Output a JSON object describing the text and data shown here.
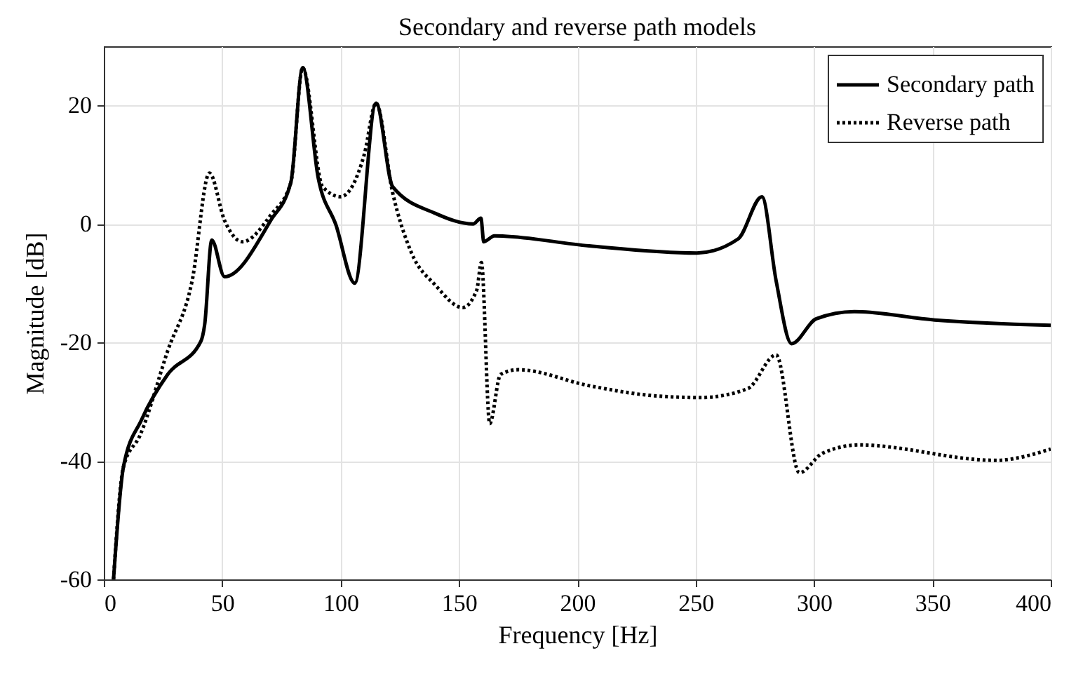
{
  "chart_data": {
    "type": "line",
    "title": "Secondary and reverse path models",
    "xlabel": "Frequency [Hz]",
    "ylabel": "Magnitude [dB]",
    "xlim": [
      0,
      400
    ],
    "xticks": [
      0,
      50,
      100,
      150,
      200,
      250,
      300,
      350,
      400
    ],
    "ylim": [
      -60,
      30
    ],
    "yticks": [
      -60,
      -40,
      -20,
      0,
      20
    ],
    "grid": true,
    "legend": "top right",
    "series": [
      {
        "name": "Secondary path",
        "color": "#000000",
        "line_style": "solid",
        "x": [
          4.1,
          8.3,
          16,
          27,
          41,
          42.6,
          45.6,
          51,
          70.5,
          79,
          84,
          90.6,
          98,
          106,
          115,
          122,
          140,
          156,
          159.3,
          160.5,
          165,
          205,
          250.5,
          268,
          278,
          284,
          290.5,
          301,
          317,
          351,
          400
        ],
        "values": [
          -60,
          -41,
          -33,
          -25.4,
          -19.8,
          -17,
          -2.7,
          -8.9,
          0.6,
          7,
          26.4,
          7.7,
          -0.1,
          -10,
          20.4,
          6.3,
          1.8,
          0,
          1,
          -3,
          -2,
          -3.7,
          -4.9,
          -2.5,
          4.6,
          -9.6,
          -20.2,
          -16,
          -14.8,
          -16.2,
          -17.1
        ]
      },
      {
        "name": "Reverse path",
        "color": "#000000",
        "line_style": "dotted",
        "x": [
          4.1,
          8.3,
          15.4,
          27,
          37.3,
          44.6,
          51,
          58.6,
          70.5,
          79,
          84,
          92.4,
          100,
          110,
          115,
          122,
          130,
          140,
          151.6,
          157.5,
          159.5,
          163,
          167.6,
          175,
          205,
          232.6,
          252,
          272,
          284,
          293.8,
          303.6,
          319,
          376.6,
          400
        ],
        "values": [
          -60,
          -41,
          -35.6,
          -21.4,
          -9.6,
          8.6,
          0.6,
          -3,
          1.5,
          7,
          26.4,
          6.3,
          4.6,
          11.7,
          20.4,
          5.3,
          -4.9,
          -10.3,
          -14.1,
          -11.2,
          -6.5,
          -33.7,
          -25.4,
          -24.6,
          -27.3,
          -29,
          -29.3,
          -27.8,
          -22.1,
          -42,
          -38.7,
          -37.3,
          -39.9,
          -38
        ]
      }
    ]
  }
}
